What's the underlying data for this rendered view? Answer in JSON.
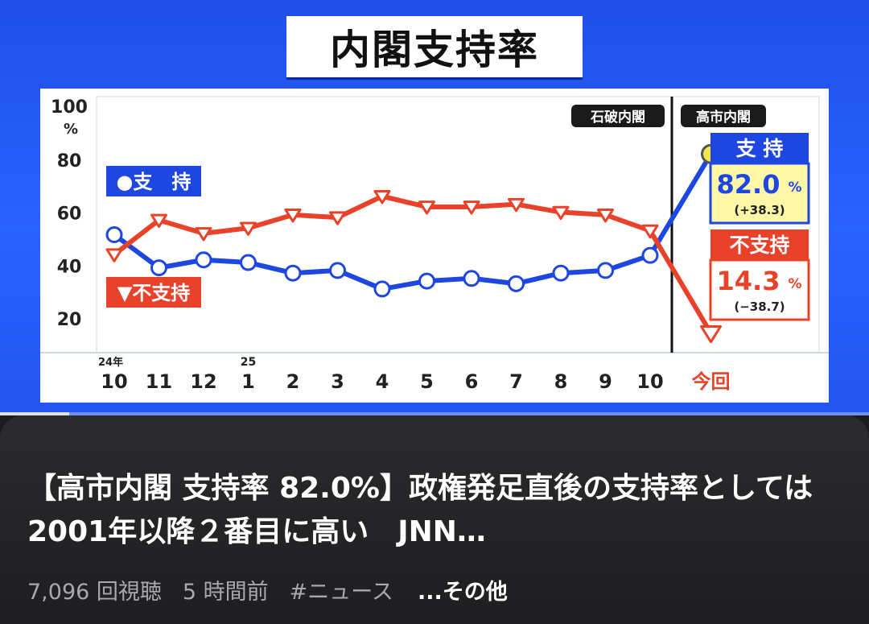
{
  "video": {
    "chart_title": "内閣支持率",
    "badges": {
      "ishiba": "石破内閣",
      "takaichi": "高市内閣"
    },
    "legend": {
      "support": "●支　持",
      "nonsupport": "▼不支持"
    },
    "boxes": {
      "support": {
        "label": "支 持",
        "value": "82.0",
        "unit": "%",
        "change": "(+38.3)"
      },
      "nonsupport": {
        "label": "不支持",
        "value": "14.3",
        "unit": "%",
        "change": "(−38.7)"
      }
    },
    "y_percent_sign": "%",
    "year_markers": {
      "first": "24年",
      "second": "25"
    },
    "progress": 0.08,
    "colors": {
      "support": "#1e46e0",
      "nonsupport": "#e8432a",
      "current_point": "#f2e64a",
      "background": "#2a62ff"
    }
  },
  "chart_data": {
    "type": "line",
    "title": "内閣支持率",
    "categories": [
      "10",
      "11",
      "12",
      "1",
      "2",
      "3",
      "4",
      "5",
      "6",
      "7",
      "8",
      "9",
      "10",
      "今回"
    ],
    "y_ticks": [
      "20",
      "40",
      "60",
      "80",
      "100"
    ],
    "ylim": [
      10,
      100
    ],
    "series": [
      {
        "name": "支持",
        "marker": "circle",
        "color": "#1e46e0",
        "values": [
          51.5,
          39,
          42,
          41,
          37,
          38,
          31,
          34,
          35,
          33,
          37,
          38,
          43.7,
          82.0
        ]
      },
      {
        "name": "不支持",
        "marker": "triangle-down",
        "color": "#e8432a",
        "values": [
          44,
          57,
          52,
          54,
          59,
          58,
          66,
          62,
          62,
          63,
          60,
          59,
          53,
          14.3
        ]
      }
    ],
    "grid": false,
    "legend": "left"
  },
  "info": {
    "title": "【高市内閣 支持率 82.0%】政権発足直後の支持率としては2001年以降２番目に高い　JNN…",
    "views": "7,096 回視聴",
    "time": "5 時間前",
    "tag": "#ニュース",
    "more": "...その他"
  }
}
